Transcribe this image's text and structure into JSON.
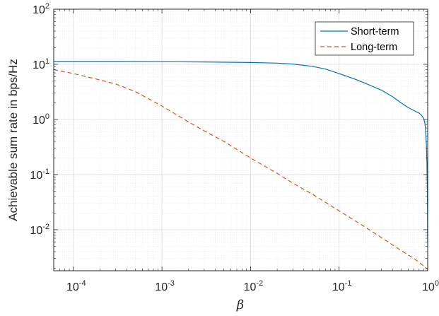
{
  "chart_data": {
    "type": "line",
    "xscale": "log",
    "yscale": "log",
    "xlim": [
      6e-05,
      1
    ],
    "ylim": [
      0.0018,
      100
    ],
    "xticks": [
      {
        "value": 0.0001,
        "base": "10",
        "exp": "-4"
      },
      {
        "value": 0.001,
        "base": "10",
        "exp": "-3"
      },
      {
        "value": 0.01,
        "base": "10",
        "exp": "-2"
      },
      {
        "value": 0.1,
        "base": "10",
        "exp": "-1"
      },
      {
        "value": 1,
        "base": "10",
        "exp": "0"
      }
    ],
    "yticks": [
      {
        "value": 0.01,
        "base": "10",
        "exp": "-2"
      },
      {
        "value": 0.1,
        "base": "10",
        "exp": "-1"
      },
      {
        "value": 1,
        "base": "10",
        "exp": "0"
      },
      {
        "value": 10,
        "base": "10",
        "exp": "1"
      },
      {
        "value": 100,
        "base": "10",
        "exp": "2"
      }
    ],
    "xlabel": "β",
    "ylabel": "Achievable sum rate in bps/Hz",
    "grid": true,
    "legend_position": "top-right",
    "series": [
      {
        "name": "Short-term",
        "color": "#0072BD",
        "dash": "solid",
        "x": [
          6e-05,
          0.0001,
          0.0003,
          0.001,
          0.003,
          0.01,
          0.02,
          0.03,
          0.05,
          0.07,
          0.1,
          0.15,
          0.2,
          0.3,
          0.4,
          0.5,
          0.6,
          0.7,
          0.8,
          0.85,
          0.9,
          0.93,
          0.95,
          0.97,
          0.98,
          0.99,
          0.995,
          1.0
        ],
        "y": [
          11.2,
          11.2,
          11.2,
          11.15,
          11.05,
          10.8,
          10.5,
          10.1,
          9.2,
          8.2,
          6.8,
          5.4,
          4.5,
          3.4,
          2.6,
          2.0,
          1.65,
          1.45,
          1.3,
          1.2,
          1.05,
          0.85,
          0.6,
          0.3,
          0.15,
          0.06,
          0.02,
          0.005
        ]
      },
      {
        "name": "Long-term",
        "color": "#D95319",
        "dash": "dashed",
        "x": [
          6e-05,
          0.0001,
          0.0002,
          0.0003,
          0.0005,
          0.001,
          0.002,
          0.003,
          0.005,
          0.01,
          0.02,
          0.03,
          0.05,
          0.1,
          0.2,
          0.3,
          0.5,
          0.7,
          0.9,
          1.0
        ],
        "y": [
          8.0,
          6.8,
          5.2,
          4.4,
          3.2,
          1.75,
          0.9,
          0.62,
          0.4,
          0.2,
          0.105,
          0.07,
          0.044,
          0.022,
          0.011,
          0.0072,
          0.0042,
          0.003,
          0.0022,
          0.0019
        ]
      }
    ]
  }
}
